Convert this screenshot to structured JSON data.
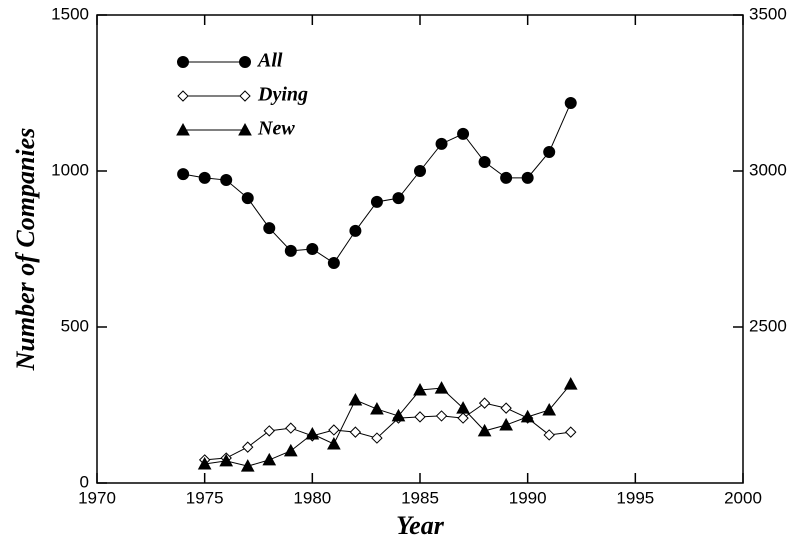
{
  "chart_data": {
    "type": "line",
    "xlabel": "Year",
    "ylabel": "Number of Companies",
    "x": [
      1974,
      1975,
      1976,
      1977,
      1978,
      1979,
      1980,
      1981,
      1982,
      1983,
      1984,
      1985,
      1986,
      1987,
      1988,
      1989,
      1990,
      1991,
      1992
    ],
    "series": [
      {
        "name": "All",
        "color": "#000000",
        "marker": "circle",
        "filled": true,
        "values": [
          990,
          978,
          971,
          913,
          817,
          744,
          750,
          705,
          808,
          901,
          913,
          1000,
          1087,
          1119,
          1029,
          978,
          978,
          1061,
          1218
        ]
      },
      {
        "name": "Dying",
        "color": "#000000",
        "marker": "diamond",
        "filled": false,
        "values": [
          null,
          74,
          80,
          115,
          167,
          176,
          151,
          170,
          163,
          144,
          208,
          212,
          215,
          208,
          256,
          240,
          208,
          154,
          163
        ]
      },
      {
        "name": "New",
        "color": "#000000",
        "marker": "triangle",
        "filled": true,
        "values": [
          null,
          61,
          71,
          54,
          74,
          103,
          157,
          125,
          266,
          237,
          215,
          298,
          304,
          240,
          167,
          186,
          212,
          234,
          317
        ]
      }
    ],
    "xlim": [
      1970,
      2000
    ],
    "xticks": [
      1970,
      1975,
      1980,
      1985,
      1990,
      1995,
      2000
    ],
    "ylim": [
      0,
      1500
    ],
    "yticks": [
      0,
      500,
      1000,
      1500
    ],
    "y2lim": [
      2000,
      3500
    ],
    "y2ticks": [
      2500,
      3000,
      3500
    ],
    "legend": "upper left",
    "grid": false
  }
}
